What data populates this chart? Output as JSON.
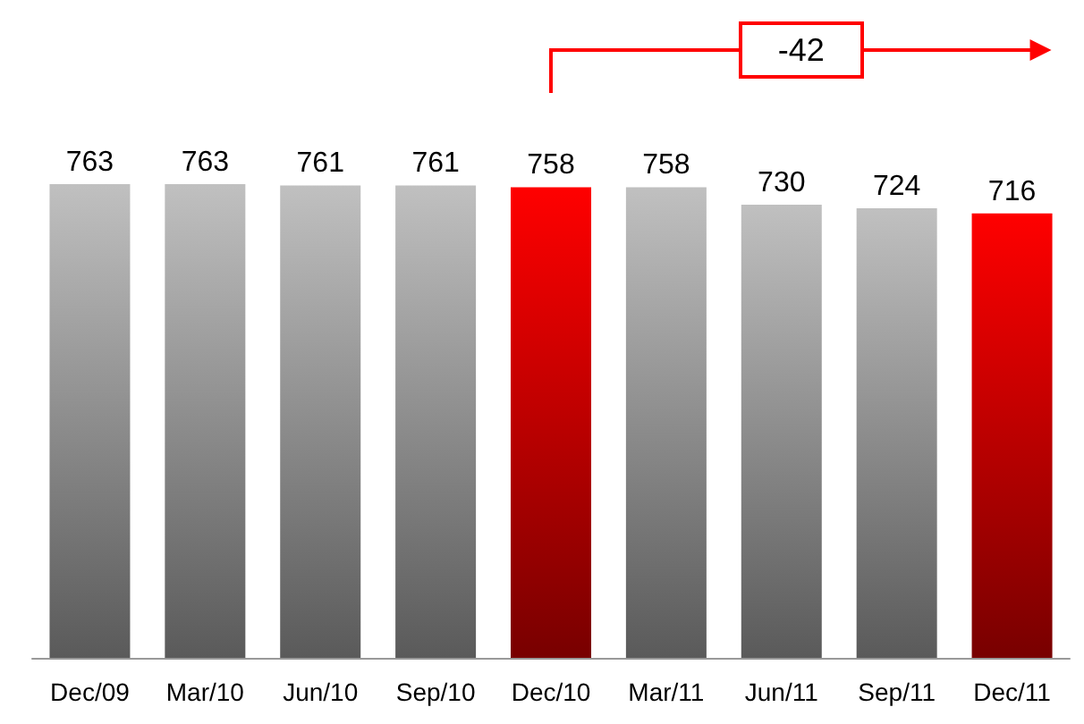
{
  "chart_data": {
    "type": "bar",
    "categories": [
      "Dec/09",
      "Mar/10",
      "Jun/10",
      "Sep/10",
      "Dec/10",
      "Mar/11",
      "Jun/11",
      "Sep/11",
      "Dec/11"
    ],
    "values": [
      763,
      763,
      761,
      761,
      758,
      758,
      730,
      724,
      716
    ],
    "colors": [
      "#c0c0c0",
      "#c0c0c0",
      "#c0c0c0",
      "#c0c0c0",
      "#ff0000",
      "#c0c0c0",
      "#c0c0c0",
      "#c0c0c0",
      "#ff0000"
    ],
    "data_labels": true,
    "annotations": [
      "-42"
    ]
  }
}
